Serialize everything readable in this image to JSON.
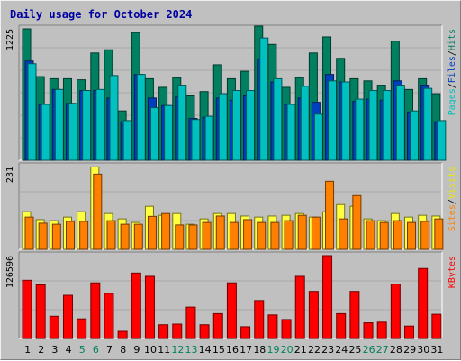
{
  "title": "Daily usage for October 2024",
  "chart_data": [
    {
      "type": "bar",
      "title": "Daily usage for October 2024",
      "legend": "right",
      "ylim": [
        0,
        1225
      ],
      "ymax_label": "1225",
      "legend_labels": [
        {
          "text": "Pages",
          "color": "#00c0c0"
        },
        {
          "text": "/",
          "color": "#000000"
        },
        {
          "text": "Files",
          "color": "#0040c0"
        },
        {
          "text": "/",
          "color": "#000000"
        },
        {
          "text": "Hits",
          "color": "#008060"
        }
      ],
      "categories": [
        "1",
        "2",
        "3",
        "4",
        "5",
        "6",
        "7",
        "8",
        "9",
        "10",
        "11",
        "12",
        "13",
        "14",
        "15",
        "16",
        "17",
        "18",
        "19",
        "20",
        "21",
        "22",
        "23",
        "24",
        "25",
        "26",
        "27",
        "28",
        "29",
        "30",
        "31"
      ],
      "series": [
        {
          "name": "Hits",
          "color": "#008060",
          "values": [
            1225,
            780,
            760,
            760,
            750,
            1000,
            1030,
            460,
            1190,
            760,
            680,
            770,
            600,
            640,
            890,
            760,
            830,
            1260,
            1080,
            680,
            770,
            1000,
            1150,
            950,
            760,
            740,
            700,
            1110,
            660,
            760,
            620
          ]
        },
        {
          "name": "Files",
          "color": "#0040c0",
          "values": [
            925,
            520,
            660,
            530,
            650,
            650,
            580,
            360,
            800,
            580,
            510,
            590,
            390,
            400,
            580,
            560,
            600,
            940,
            730,
            520,
            580,
            540,
            800,
            730,
            550,
            570,
            560,
            740,
            450,
            700,
            360
          ]
        },
        {
          "name": "Pages",
          "color": "#00c0c0",
          "values": [
            900,
            520,
            660,
            530,
            650,
            660,
            790,
            370,
            800,
            490,
            510,
            700,
            380,
            410,
            620,
            650,
            650,
            1140,
            760,
            520,
            690,
            430,
            740,
            730,
            570,
            650,
            650,
            700,
            460,
            670,
            370
          ]
        }
      ]
    },
    {
      "type": "bar",
      "legend": "right",
      "ylim": [
        0,
        231
      ],
      "ymax_label": "231",
      "legend_labels": [
        {
          "text": "Sites",
          "color": "#ff8000"
        },
        {
          "text": "/",
          "color": "#000000"
        },
        {
          "text": "Visits",
          "color": "#e8e800"
        }
      ],
      "categories": [
        "1",
        "2",
        "3",
        "4",
        "5",
        "6",
        "7",
        "8",
        "9",
        "10",
        "11",
        "12",
        "13",
        "14",
        "15",
        "16",
        "17",
        "18",
        "19",
        "20",
        "21",
        "22",
        "23",
        "24",
        "25",
        "26",
        "27",
        "28",
        "29",
        "30",
        "31"
      ],
      "series": [
        {
          "name": "Visits",
          "color": "#ffff40",
          "values": [
            105,
            83,
            80,
            90,
            105,
            230,
            100,
            85,
            75,
            120,
            95,
            100,
            70,
            85,
            100,
            100,
            93,
            90,
            93,
            95,
            100,
            90,
            105,
            125,
            120,
            85,
            80,
            100,
            90,
            95,
            93
          ]
        },
        {
          "name": "Sites",
          "color": "#ff8000",
          "values": [
            90,
            73,
            70,
            78,
            78,
            210,
            80,
            70,
            70,
            92,
            100,
            68,
            68,
            75,
            93,
            75,
            83,
            75,
            75,
            80,
            95,
            90,
            190,
            85,
            150,
            80,
            75,
            80,
            75,
            78,
            85
          ]
        }
      ]
    },
    {
      "type": "bar",
      "legend": "right",
      "ylim": [
        0,
        126596
      ],
      "ymax_label": "126596",
      "legend_labels": [
        {
          "text": "KBytes",
          "color": "#ff0000"
        }
      ],
      "categories": [
        "1",
        "2",
        "3",
        "4",
        "5",
        "6",
        "7",
        "8",
        "9",
        "10",
        "11",
        "12",
        "13",
        "14",
        "15",
        "16",
        "17",
        "18",
        "19",
        "20",
        "21",
        "22",
        "23",
        "24",
        "25",
        "26",
        "27",
        "28",
        "29",
        "30",
        "31"
      ],
      "series": [
        {
          "name": "KBytes",
          "color": "#ff0000",
          "values": [
            89000,
            82000,
            34000,
            66000,
            30000,
            85000,
            69000,
            11000,
            100000,
            95000,
            21000,
            22000,
            48000,
            21000,
            38000,
            85000,
            18000,
            58000,
            36000,
            29000,
            95000,
            72000,
            126596,
            38000,
            72000,
            24000,
            25000,
            83000,
            19000,
            107000,
            37000
          ]
        }
      ]
    }
  ],
  "x_label_colors": {
    "weekday": "#000000",
    "weekend": "#008060"
  },
  "weekend_days": [
    "5",
    "6",
    "12",
    "13",
    "19",
    "20",
    "26",
    "27"
  ]
}
